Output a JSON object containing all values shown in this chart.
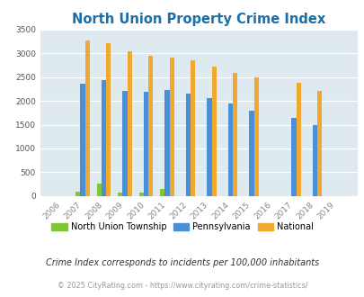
{
  "title": "North Union Property Crime Index",
  "years": [
    "06",
    "07",
    "08",
    "09",
    "10",
    "11",
    "12",
    "13",
    "14",
    "15",
    "16",
    "17",
    "18",
    "19"
  ],
  "north_union": [
    0,
    90,
    260,
    80,
    70,
    145,
    0,
    0,
    0,
    0,
    0,
    0,
    0,
    0
  ],
  "pennsylvania": [
    0,
    2370,
    2440,
    2210,
    2185,
    2230,
    2155,
    2070,
    1950,
    1800,
    0,
    1640,
    1490,
    0
  ],
  "national": [
    0,
    3270,
    3210,
    3040,
    2950,
    2910,
    2855,
    2730,
    2590,
    2500,
    0,
    2380,
    2205,
    0
  ],
  "color_nu": "#7dc832",
  "color_pa": "#4a90d9",
  "color_nat": "#f0a830",
  "bg_color": "#deeaf0",
  "ylim": [
    0,
    3500
  ],
  "yticks": [
    0,
    500,
    1000,
    1500,
    2000,
    2500,
    3000,
    3500
  ],
  "title_color": "#1a6fa8",
  "title_fontsize": 10.5,
  "footer_text": "© 2025 CityRating.com - https://www.cityrating.com/crime-statistics/",
  "subtitle_text": "Crime Index corresponds to incidents per 100,000 inhabitants",
  "legend_labels": [
    "North Union Township",
    "Pennsylvania",
    "National"
  ]
}
